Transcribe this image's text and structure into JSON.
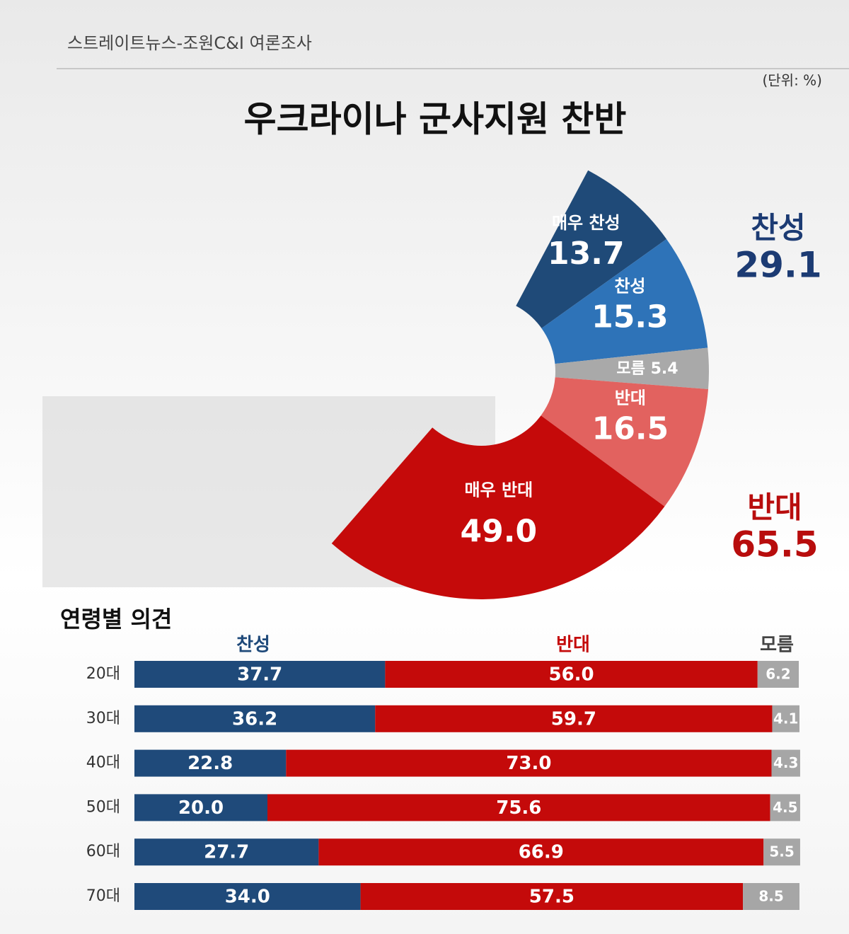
{
  "source": "스트레이트뉴스-조원C&I 여론조사",
  "unit": "(단위: %)",
  "summary": [
    {
      "label": "찬성",
      "value": 29.1,
      "color": "#1c3b73"
    },
    {
      "label": "반대",
      "value": 65.5,
      "color": "#b80d0d"
    }
  ],
  "chart_data": [
    {
      "type": "donut",
      "title": "우크라이나 군사지원 찬반",
      "categories": [
        "매우 찬성",
        "찬성",
        "모름",
        "반대",
        "매우 반대"
      ],
      "values": [
        13.7,
        15.3,
        5.4,
        16.5,
        49.0
      ],
      "value_labels": [
        "13.7",
        "15.3",
        "5.4",
        "16.5",
        "49.0"
      ],
      "colors": [
        "#1f4a78",
        "#2e73b8",
        "#a9a9a9",
        "#e2625f",
        "#c50a0a"
      ]
    },
    {
      "type": "stacked-bar",
      "title": "연령별 의견",
      "categories": [
        "20대",
        "30대",
        "40대",
        "50대",
        "60대",
        "70대"
      ],
      "xlim": [
        0,
        100
      ],
      "series": [
        {
          "name": "찬성",
          "color": "#1f4a7a",
          "values": [
            37.7,
            36.2,
            22.8,
            20.0,
            27.7,
            34.0
          ],
          "value_labels": [
            "37.7",
            "36.2",
            "22.8",
            "20.0",
            "27.7",
            "34.0"
          ]
        },
        {
          "name": "반대",
          "color": "#c40a0a",
          "values": [
            56.0,
            59.7,
            73.0,
            75.6,
            66.9,
            57.5
          ],
          "value_labels": [
            "56.0",
            "59.7",
            "73.0",
            "75.6",
            "66.9",
            "57.5"
          ]
        },
        {
          "name": "모름",
          "color": "#a6a6a6",
          "values": [
            6.2,
            4.1,
            4.3,
            4.5,
            5.5,
            8.5
          ]
        }
      ]
    }
  ]
}
